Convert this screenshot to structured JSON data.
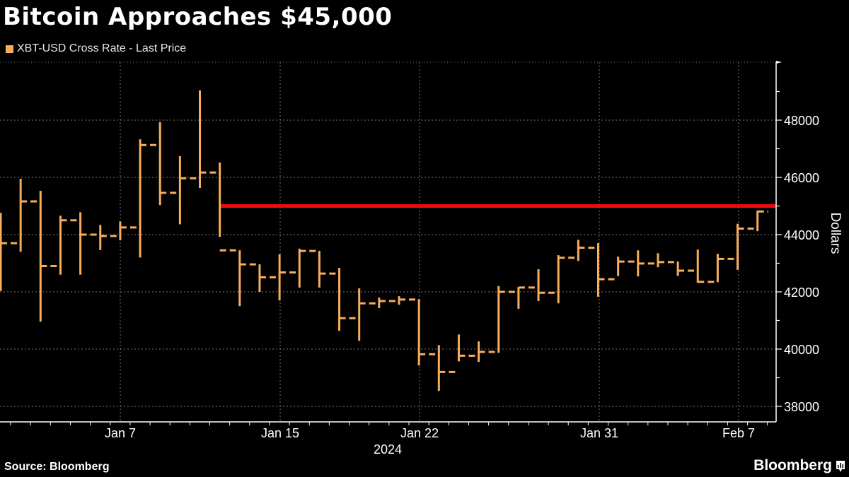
{
  "header": {
    "title": "Bitcoin Approaches $45,000",
    "legend_label": "XBT-USD Cross Rate - Last Price"
  },
  "footer": {
    "source": "Source: Bloomberg",
    "brand": "Bloomberg"
  },
  "colors": {
    "series": "#f8ad5c",
    "reference_line": "#ee0b0b",
    "background": "#000000",
    "grid": "#777777",
    "text": "#ffffff"
  },
  "chart_data": {
    "type": "ohlc",
    "title": "Bitcoin Approaches $45,000",
    "legend": [
      "XBT-USD Cross Rate - Last Price"
    ],
    "xlabel": "2024",
    "ylabel": "Dollars",
    "ylim": [
      37500,
      49500
    ],
    "yticks": [
      38000,
      40000,
      42000,
      44000,
      46000,
      48000
    ],
    "xticks": [
      "Jan 7",
      "Jan 15",
      "Jan 22",
      "Jan 31",
      "Feb 7"
    ],
    "grid": true,
    "reference_line": {
      "value": 45000,
      "from_index": 11
    },
    "bars": [
      {
        "high": 44760,
        "low": 42030,
        "close": 43700
      },
      {
        "high": 45950,
        "low": 43400,
        "close": 45160
      },
      {
        "high": 45530,
        "low": 40960,
        "close": 42900
      },
      {
        "high": 44660,
        "low": 42600,
        "close": 44500
      },
      {
        "high": 44780,
        "low": 42600,
        "close": 44000
      },
      {
        "high": 44340,
        "low": 43460,
        "close": 43950
      },
      {
        "high": 44460,
        "low": 43800,
        "close": 44250
      },
      {
        "high": 47330,
        "low": 43200,
        "close": 47130
      },
      {
        "high": 47930,
        "low": 45030,
        "close": 45460
      },
      {
        "high": 46740,
        "low": 44360,
        "close": 45970
      },
      {
        "high": 49040,
        "low": 45630,
        "close": 46170
      },
      {
        "high": 46520,
        "low": 43920,
        "close": 43450
      },
      {
        "high": 43450,
        "low": 41500,
        "close": 42960
      },
      {
        "high": 42960,
        "low": 42000,
        "close": 42510
      },
      {
        "high": 43310,
        "low": 41700,
        "close": 42680
      },
      {
        "high": 43510,
        "low": 42150,
        "close": 43430
      },
      {
        "high": 43430,
        "low": 42150,
        "close": 42640
      },
      {
        "high": 42840,
        "low": 40640,
        "close": 41080
      },
      {
        "high": 42120,
        "low": 40290,
        "close": 41600
      },
      {
        "high": 41800,
        "low": 41430,
        "close": 41680
      },
      {
        "high": 41850,
        "low": 41550,
        "close": 41730
      },
      {
        "high": 41750,
        "low": 39430,
        "close": 39820
      },
      {
        "high": 40140,
        "low": 38540,
        "close": 39200
      },
      {
        "high": 40510,
        "low": 39570,
        "close": 39770
      },
      {
        "high": 40270,
        "low": 39550,
        "close": 39900
      },
      {
        "high": 42200,
        "low": 39870,
        "close": 42000
      },
      {
        "high": 42170,
        "low": 41410,
        "close": 42150
      },
      {
        "high": 42790,
        "low": 41680,
        "close": 41970
      },
      {
        "high": 43280,
        "low": 41600,
        "close": 43190
      },
      {
        "high": 43820,
        "low": 43080,
        "close": 43540
      },
      {
        "high": 43700,
        "low": 41830,
        "close": 42440
      },
      {
        "high": 43230,
        "low": 42550,
        "close": 43060
      },
      {
        "high": 43450,
        "low": 42540,
        "close": 42990
      },
      {
        "high": 43350,
        "low": 42860,
        "close": 43040
      },
      {
        "high": 43060,
        "low": 42560,
        "close": 42740
      },
      {
        "high": 43480,
        "low": 42320,
        "close": 42350
      },
      {
        "high": 43330,
        "low": 42340,
        "close": 43150
      },
      {
        "high": 44380,
        "low": 42770,
        "close": 44210
      },
      {
        "high": 44840,
        "low": 44120,
        "close": 44810
      }
    ]
  }
}
